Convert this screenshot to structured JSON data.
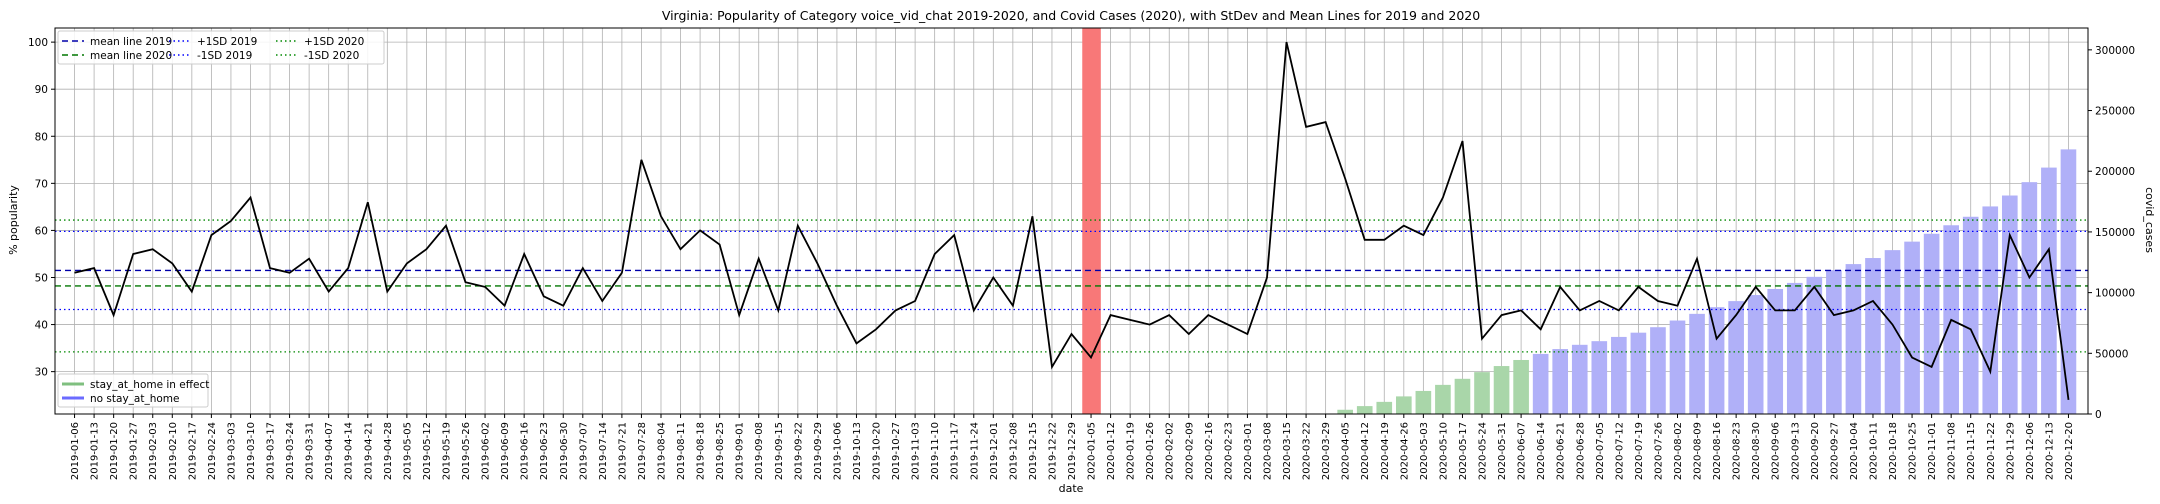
{
  "chart_data": {
    "type": "bar+line",
    "title": "Virginia: Popularity of Category voice_vid_chat 2019-2020, and Covid Cases (2020), with StDev and Mean Lines for 2019 and 2020",
    "xlabel": "date",
    "ylabel": "% popularity",
    "y2label": "covid_cases",
    "ylim": [
      21,
      103
    ],
    "y2lim": [
      0,
      318000
    ],
    "yticks": [
      "30",
      "40",
      "50",
      "60",
      "70",
      "80",
      "90",
      "100"
    ],
    "y2ticks": [
      "0",
      "50000",
      "100000",
      "150000",
      "200000",
      "250000",
      "300000"
    ],
    "grid": true,
    "dates": [
      "2019-01-06",
      "2019-01-13",
      "2019-01-20",
      "2019-01-27",
      "2019-02-03",
      "2019-02-10",
      "2019-02-17",
      "2019-02-24",
      "2019-03-03",
      "2019-03-10",
      "2019-03-17",
      "2019-03-24",
      "2019-03-31",
      "2019-04-07",
      "2019-04-14",
      "2019-04-21",
      "2019-04-28",
      "2019-05-05",
      "2019-05-12",
      "2019-05-19",
      "2019-05-26",
      "2019-06-02",
      "2019-06-09",
      "2019-06-16",
      "2019-06-23",
      "2019-06-30",
      "2019-07-07",
      "2019-07-14",
      "2019-07-21",
      "2019-07-28",
      "2019-08-04",
      "2019-08-11",
      "2019-08-18",
      "2019-08-25",
      "2019-09-01",
      "2019-09-08",
      "2019-09-15",
      "2019-09-22",
      "2019-09-29",
      "2019-10-06",
      "2019-10-13",
      "2019-10-20",
      "2019-10-27",
      "2019-11-03",
      "2019-11-10",
      "2019-11-17",
      "2019-11-24",
      "2019-12-01",
      "2019-12-08",
      "2019-12-15",
      "2019-12-22",
      "2019-12-29",
      "2020-01-05",
      "2020-01-12",
      "2020-01-19",
      "2020-01-26",
      "2020-02-02",
      "2020-02-09",
      "2020-02-16",
      "2020-02-23",
      "2020-03-01",
      "2020-03-08",
      "2020-03-15",
      "2020-03-22",
      "2020-03-29",
      "2020-04-05",
      "2020-04-12",
      "2020-04-19",
      "2020-04-26",
      "2020-05-03",
      "2020-05-10",
      "2020-05-17",
      "2020-05-24",
      "2020-05-31",
      "2020-06-07",
      "2020-06-14",
      "2020-06-21",
      "2020-06-28",
      "2020-07-05",
      "2020-07-12",
      "2020-07-19",
      "2020-07-26",
      "2020-08-02",
      "2020-08-09",
      "2020-08-16",
      "2020-08-23",
      "2020-08-30",
      "2020-09-06",
      "2020-09-13",
      "2020-09-20",
      "2020-09-27",
      "2020-10-04",
      "2020-10-11",
      "2020-10-18",
      "2020-10-25",
      "2020-11-01",
      "2020-11-08",
      "2020-11-15",
      "2020-11-22",
      "2020-11-29",
      "2020-12-06",
      "2020-12-13",
      "2020-12-20"
    ],
    "tick_labels": [
      "2019-01-06",
      "2019-01-13",
      "2019-01-20",
      "2019-01-27",
      "2019-02-03",
      "2019-02-10",
      "2019-02-17",
      "2019-02-24",
      "2019-03-03",
      "2019-03-10",
      "2019-03-17",
      "2019-03-24",
      "2019-03-31",
      "2019-04-07",
      "2019-04-14",
      "2019-04-21",
      "2019-04-28",
      "2019-05-05",
      "2019-05-12",
      "2019-05-19",
      "2019-05-26",
      "2019-06-02",
      "2019-06-09",
      "2019-06-16",
      "2019-06-23",
      "2019-06-30",
      "2019-07-07",
      "2019-07-14",
      "2019-07-21",
      "2019-07-28",
      "2019-08-04",
      "2019-08-11",
      "2019-08-18",
      "2019-08-25",
      "2019-09-01",
      "2019-09-08",
      "2019-09-15",
      "2019-09-22",
      "2019-09-29",
      "2019-10-06",
      "2019-10-13",
      "2019-10-20",
      "2019-10-27",
      "2019-11-03",
      "2019-11-10",
      "2019-11-17",
      "2019-11-24",
      "2019-12-01",
      "2019-12-08",
      "2019-12-15",
      "2019-12-22",
      "2019-12-29",
      "2020-01-05",
      "2020-01-12",
      "2020-01-19",
      "2020-01-26",
      "2020-02-02",
      "2020-02-09",
      "2020-02-16",
      "2020-02-23",
      "2020-03-01",
      "2020-03-08",
      "2020-03-15",
      "2020-03-22",
      "2020-03-29",
      "2020-04-05",
      "2020-04-12",
      "2020-04-19",
      "2020-04-26",
      "2020-05-03",
      "2020-05-10",
      "2020-05-17",
      "2020-05-24",
      "2020-05-31",
      "2020-06-07",
      "2020-06-14",
      "2020-06-21",
      "2020-06-28",
      "2020-07-05",
      "2020-07-12",
      "2020-07-19",
      "2020-07-26",
      "2020-08-02",
      "2020-08-09",
      "2020-08-16",
      "2020-08-23",
      "2020-08-30",
      "2020-09-06",
      "2020-09-13",
      "2020-09-20",
      "2020-09-27",
      "2020-10-04",
      "2020-10-11",
      "2020-10-18",
      "2020-10-25",
      "2020-11-01",
      "2020-11-08",
      "2020-11-15",
      "2020-11-22",
      "2020-11-29",
      "2020-12-06",
      "2020-12-13",
      "2020-12-20"
    ],
    "popularity": [
      51,
      52,
      42,
      55,
      56,
      53,
      47,
      59,
      62,
      67,
      52,
      51,
      54,
      47,
      52,
      66,
      47,
      53,
      56,
      61,
      49,
      48,
      44,
      55,
      46,
      44,
      52,
      45,
      51,
      75,
      63,
      56,
      60,
      57,
      42,
      54,
      43,
      61,
      53,
      44,
      36,
      39,
      43,
      45,
      55,
      59,
      43,
      50,
      44,
      63,
      31,
      38,
      33,
      42,
      41,
      40,
      42,
      38,
      42,
      40,
      38,
      50,
      100,
      82,
      83,
      71,
      58,
      58,
      61,
      59,
      67,
      79,
      37,
      42,
      43,
      39,
      48,
      43,
      45,
      43,
      48,
      45,
      44,
      54,
      37,
      42,
      48,
      43,
      43,
      48,
      42,
      43,
      45,
      40,
      33,
      31,
      41,
      39,
      30,
      59,
      50,
      56,
      24
    ],
    "covid_cases": [
      0,
      0,
      0,
      0,
      0,
      0,
      0,
      0,
      0,
      0,
      0,
      0,
      0,
      0,
      0,
      0,
      0,
      0,
      0,
      0,
      0,
      0,
      0,
      0,
      0,
      0,
      0,
      0,
      0,
      0,
      0,
      0,
      0,
      0,
      0,
      0,
      0,
      0,
      0,
      0,
      0,
      0,
      0,
      0,
      0,
      0,
      0,
      0,
      0,
      0,
      0,
      0,
      0,
      0,
      0,
      0,
      0,
      0,
      0,
      0,
      0,
      0,
      0,
      0,
      1000,
      3500,
      6500,
      10000,
      14500,
      19000,
      24000,
      29000,
      34500,
      39500,
      44500,
      49500,
      53500,
      57000,
      60000,
      63500,
      67000,
      71500,
      77000,
      82500,
      88000,
      93000,
      98000,
      103000,
      108000,
      113000,
      118500,
      123500,
      128500,
      135000,
      142000,
      148500,
      155500,
      162500,
      171000,
      180000,
      191000,
      203000,
      218000
    ],
    "covid_period": [
      "2020-04-05",
      "2020-12-20"
    ],
    "stay_at_home": [
      "2020-04-05",
      "2020-06-07"
    ],
    "highlight_week": "2020-01-05",
    "reference_lines": {
      "mean_2019": 51.5,
      "mean_2020": 48.2,
      "plus1sd_2019": 59.8,
      "minus1sd_2019": 43.2,
      "plus1sd_2020": 62.2,
      "minus1sd_2020": 34.2
    },
    "legend_top": [
      {
        "label": "mean line 2019",
        "color": "#0000aa",
        "dash": "dashed"
      },
      {
        "label": "mean line 2020",
        "color": "#007700",
        "dash": "dashed"
      },
      {
        "label": "+1SD 2019",
        "color": "#0000ff",
        "dash": "dotted"
      },
      {
        "label": "-1SD 2019",
        "color": "#0000ff",
        "dash": "dotted"
      },
      {
        "label": "+1SD 2020",
        "color": "#008800",
        "dash": "dotted"
      },
      {
        "label": "-1SD 2020",
        "color": "#008800",
        "dash": "dotted"
      }
    ],
    "legend_bottom": [
      {
        "label": "stay_at_home in effect",
        "color": "#7fbf7f"
      },
      {
        "label": "no stay_at_home",
        "color": "#6b6bff"
      }
    ],
    "colors": {
      "line": "#000000",
      "bar_stay": "#a9d6a9",
      "bar_no_stay": "#b0b0f8",
      "highlight": "#f87878",
      "grid": "#b0b0b0"
    }
  }
}
